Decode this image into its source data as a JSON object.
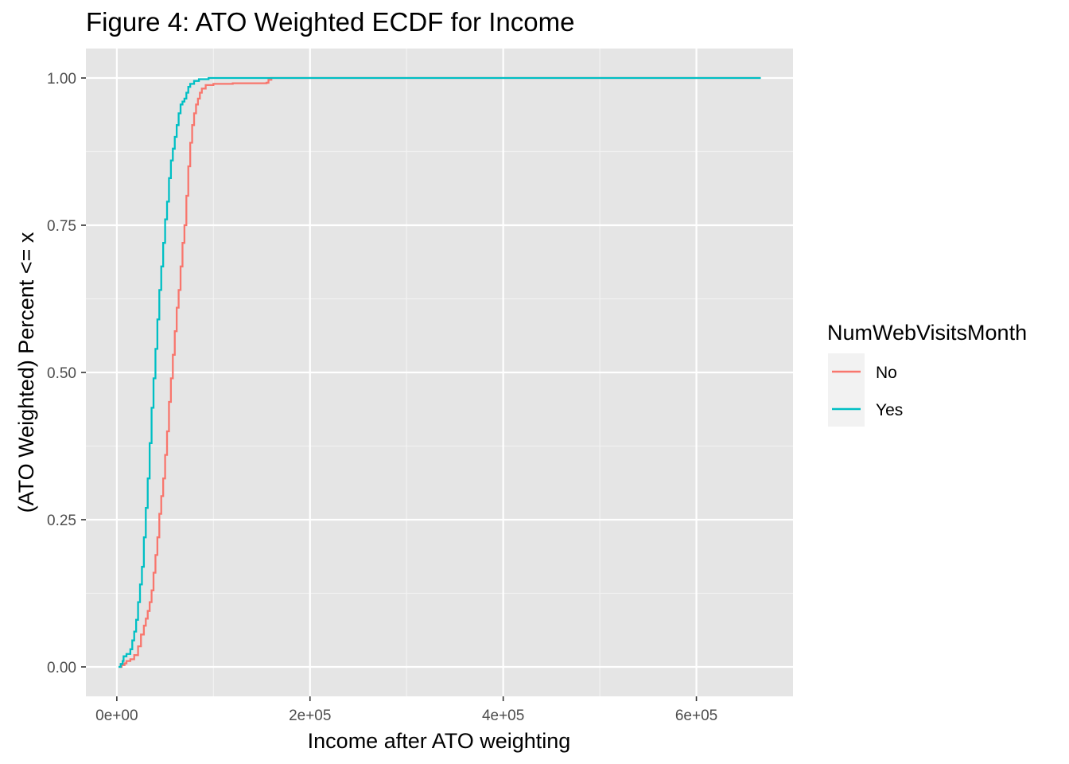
{
  "chart_data": {
    "type": "line",
    "subtype": "step-ecdf",
    "title": "Figure 4: ATO Weighted ECDF for Income",
    "xlabel": "Income after ATO weighting",
    "ylabel": "(ATO Weighted) Percent <= x",
    "xlim": [
      -32000,
      700000
    ],
    "ylim": [
      -0.05,
      1.05
    ],
    "x_ticks": [
      {
        "value": 0,
        "label": "0e+00"
      },
      {
        "value": 200000,
        "label": "2e+05"
      },
      {
        "value": 400000,
        "label": "4e+05"
      },
      {
        "value": 600000,
        "label": "6e+05"
      }
    ],
    "y_ticks": [
      {
        "value": 0,
        "label": "0.00"
      },
      {
        "value": 0.25,
        "label": "0.25"
      },
      {
        "value": 0.5,
        "label": "0.50"
      },
      {
        "value": 0.75,
        "label": "0.75"
      },
      {
        "value": 1,
        "label": "1.00"
      }
    ],
    "grid": true,
    "background": "#e5e5e5",
    "legend": {
      "title": "NumWebVisitsMonth",
      "position": "right"
    },
    "series": [
      {
        "name": "No",
        "color": "#f8766d",
        "points": [
          [
            1730,
            0.0
          ],
          [
            5000,
            0.003
          ],
          [
            8000,
            0.006
          ],
          [
            10000,
            0.01
          ],
          [
            14000,
            0.013
          ],
          [
            18000,
            0.02
          ],
          [
            22000,
            0.035
          ],
          [
            25000,
            0.055
          ],
          [
            28000,
            0.07
          ],
          [
            30000,
            0.082
          ],
          [
            32000,
            0.095
          ],
          [
            34000,
            0.11
          ],
          [
            36000,
            0.13
          ],
          [
            38000,
            0.16
          ],
          [
            40000,
            0.19
          ],
          [
            42000,
            0.22
          ],
          [
            44000,
            0.26
          ],
          [
            46000,
            0.29
          ],
          [
            48000,
            0.32
          ],
          [
            50000,
            0.36
          ],
          [
            52000,
            0.4
          ],
          [
            54000,
            0.45
          ],
          [
            56000,
            0.49
          ],
          [
            58000,
            0.53
          ],
          [
            60000,
            0.57
          ],
          [
            62000,
            0.61
          ],
          [
            64000,
            0.64
          ],
          [
            66000,
            0.68
          ],
          [
            68000,
            0.72
          ],
          [
            70000,
            0.75
          ],
          [
            72000,
            0.8
          ],
          [
            74000,
            0.85
          ],
          [
            76000,
            0.89
          ],
          [
            78000,
            0.92
          ],
          [
            80000,
            0.94
          ],
          [
            82000,
            0.955
          ],
          [
            84000,
            0.965
          ],
          [
            86000,
            0.975
          ],
          [
            88000,
            0.982
          ],
          [
            92000,
            0.988
          ],
          [
            100000,
            0.99
          ],
          [
            120000,
            0.991
          ],
          [
            155000,
            0.992
          ],
          [
            157000,
            0.997
          ],
          [
            160000,
            1.0
          ],
          [
            666666,
            1.0
          ]
        ]
      },
      {
        "name": "Yes",
        "color": "#00bfc4",
        "points": [
          [
            1730,
            0.0
          ],
          [
            4000,
            0.005
          ],
          [
            6000,
            0.01
          ],
          [
            7000,
            0.018
          ],
          [
            10000,
            0.022
          ],
          [
            14000,
            0.03
          ],
          [
            16000,
            0.045
          ],
          [
            18000,
            0.06
          ],
          [
            20000,
            0.08
          ],
          [
            22000,
            0.11
          ],
          [
            24000,
            0.14
          ],
          [
            26000,
            0.17
          ],
          [
            28000,
            0.22
          ],
          [
            30000,
            0.27
          ],
          [
            32000,
            0.32
          ],
          [
            34000,
            0.38
          ],
          [
            36000,
            0.44
          ],
          [
            38000,
            0.49
          ],
          [
            40000,
            0.54
          ],
          [
            42000,
            0.59
          ],
          [
            44000,
            0.64
          ],
          [
            46000,
            0.68
          ],
          [
            48000,
            0.72
          ],
          [
            50000,
            0.76
          ],
          [
            52000,
            0.79
          ],
          [
            54000,
            0.83
          ],
          [
            56000,
            0.86
          ],
          [
            58000,
            0.88
          ],
          [
            60000,
            0.9
          ],
          [
            62000,
            0.92
          ],
          [
            64000,
            0.94
          ],
          [
            66000,
            0.955
          ],
          [
            68000,
            0.96
          ],
          [
            70000,
            0.965
          ],
          [
            72000,
            0.975
          ],
          [
            74000,
            0.985
          ],
          [
            76000,
            0.99
          ],
          [
            80000,
            0.995
          ],
          [
            85000,
            0.998
          ],
          [
            95000,
            1.0
          ],
          [
            666666,
            1.0
          ]
        ]
      }
    ]
  }
}
